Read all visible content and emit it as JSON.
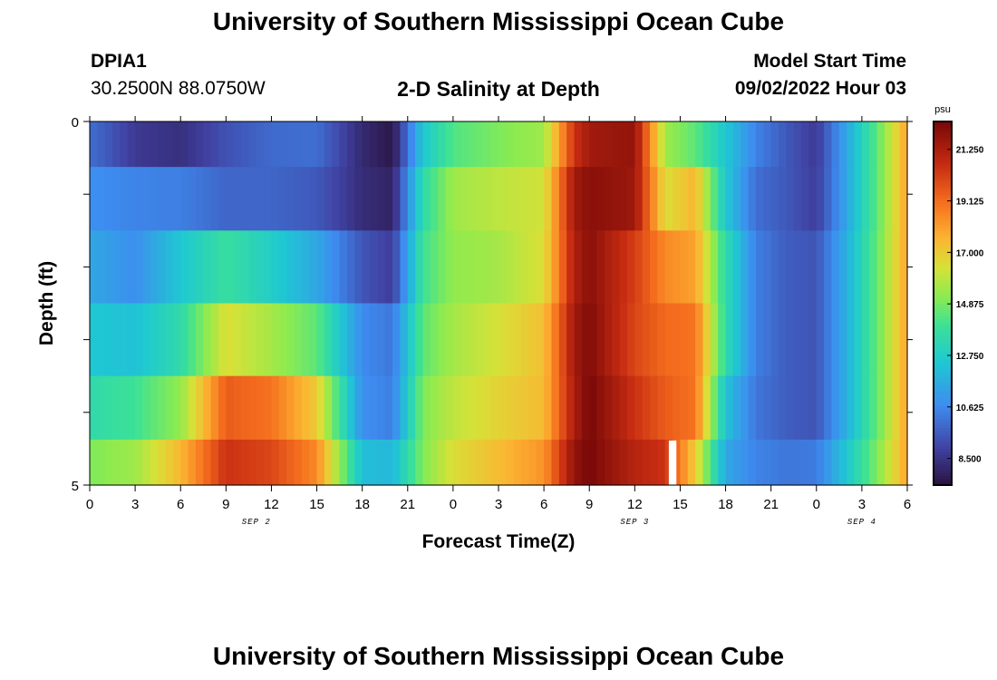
{
  "header": {
    "title": "University of Southern Mississippi Ocean Cube",
    "station": "DPIA1",
    "coords": "30.2500N  88.0750W",
    "plot_title": "2-D Salinity at Depth",
    "start_label": "Model Start Time",
    "start_value": "09/02/2022 Hour 03"
  },
  "footer": {
    "title": "University of Southern Mississippi Ocean Cube"
  },
  "chart_data": {
    "type": "heatmap",
    "xlabel": "Forecast Time(Z)",
    "ylabel": "Depth (ft)",
    "x_tick_labels": [
      "0",
      "3",
      "6",
      "9",
      "12",
      "15",
      "18",
      "21",
      "0",
      "3",
      "6",
      "9",
      "12",
      "15",
      "18",
      "21",
      "0",
      "3",
      "6"
    ],
    "date_labels": [
      {
        "label": "SEP 2",
        "at_hour": 11
      },
      {
        "label": "SEP 3",
        "at_hour": 36
      },
      {
        "label": "SEP 4",
        "at_hour": 51
      }
    ],
    "x_range_hours": [
      0,
      54
    ],
    "y_range_ft": [
      0,
      5
    ],
    "y_tick_labels": [
      {
        "value": 0,
        "label": "0"
      },
      {
        "value": 5,
        "label": "5"
      }
    ],
    "depth_layers_ft": [
      0.25,
      1.0,
      2.0,
      3.0,
      4.0,
      4.75
    ],
    "colorbar": {
      "unit": "psu",
      "min": 7.4,
      "max": 22.4,
      "tick_values": [
        8.5,
        10.625,
        12.75,
        14.875,
        17.0,
        19.125,
        21.25
      ],
      "tick_labels": [
        "8.500",
        "10.625",
        "12.750",
        "14.875",
        "17.000",
        "19.125",
        "21.250"
      ]
    },
    "salinity_keyframes": [
      {
        "depth_ft": 0.25,
        "hours": [
          0,
          3,
          6,
          9,
          12,
          15,
          18,
          20,
          22,
          24,
          27,
          30,
          32,
          33,
          36,
          38,
          40,
          42,
          44,
          46,
          48,
          50,
          52,
          54
        ],
        "psu": [
          10.0,
          8.7,
          8.4,
          9.3,
          9.9,
          10.0,
          8.2,
          7.6,
          12.5,
          14.3,
          15.0,
          15.5,
          20.5,
          21.5,
          21.8,
          15.5,
          14.5,
          12.5,
          10.5,
          9.5,
          8.7,
          11.5,
          14.5,
          18.0
        ]
      },
      {
        "depth_ft": 1.0,
        "hours": [
          0,
          3,
          6,
          9,
          12,
          15,
          18,
          20,
          22,
          24,
          27,
          30,
          32,
          33,
          36,
          38,
          40,
          42,
          44,
          46,
          48,
          50,
          52,
          54
        ],
        "psu": [
          10.8,
          10.5,
          10.4,
          9.8,
          9.8,
          9.5,
          8.3,
          8.0,
          13.5,
          15.5,
          16.0,
          16.3,
          21.5,
          22.0,
          21.6,
          16.5,
          17.5,
          12.5,
          10.0,
          9.5,
          8.8,
          11.5,
          14.5,
          18.0
        ]
      },
      {
        "depth_ft": 2.0,
        "hours": [
          0,
          3,
          6,
          9,
          12,
          15,
          18,
          20,
          22,
          24,
          27,
          30,
          32,
          33,
          36,
          38,
          40,
          42,
          44,
          46,
          48,
          50,
          52,
          54
        ],
        "psu": [
          11.5,
          10.8,
          12.5,
          13.8,
          12.8,
          11.5,
          9.4,
          8.8,
          14.0,
          15.3,
          15.6,
          16.5,
          21.2,
          22.0,
          20.2,
          18.5,
          18.0,
          13.5,
          10.4,
          9.6,
          9.4,
          11.8,
          14.6,
          18.0
        ]
      },
      {
        "depth_ft": 3.0,
        "hours": [
          0,
          3,
          6,
          9,
          12,
          15,
          18,
          20,
          22,
          24,
          27,
          30,
          32,
          33,
          36,
          38,
          40,
          42,
          44,
          46,
          48,
          50,
          52,
          54
        ],
        "psu": [
          12.5,
          12.3,
          13.5,
          16.5,
          15.6,
          14.5,
          10.7,
          10.2,
          14.5,
          15.6,
          16.4,
          17.3,
          21.5,
          22.2,
          20.0,
          19.2,
          19.0,
          13.5,
          10.4,
          9.6,
          9.4,
          11.8,
          14.6,
          18.0
        ]
      },
      {
        "depth_ft": 4.0,
        "hours": [
          0,
          3,
          6,
          9,
          12,
          15,
          18,
          20,
          22,
          24,
          27,
          30,
          32,
          33,
          36,
          38,
          40,
          42,
          44,
          46,
          48,
          50,
          52,
          54
        ],
        "psu": [
          13.5,
          14.0,
          15.3,
          19.5,
          19.0,
          17.0,
          10.8,
          10.4,
          15.0,
          16.0,
          16.8,
          17.4,
          21.3,
          22.4,
          20.5,
          19.5,
          19.0,
          12.3,
          10.2,
          9.6,
          9.4,
          11.8,
          14.6,
          18.0
        ]
      },
      {
        "depth_ft": 4.75,
        "hours": [
          0,
          3,
          6,
          9,
          12,
          15,
          18,
          20,
          22,
          24,
          27,
          30,
          32,
          33,
          36,
          38,
          40,
          42,
          44,
          46,
          48,
          50,
          52,
          54
        ],
        "psu": [
          15.0,
          15.5,
          17.5,
          20.5,
          20.0,
          18.5,
          12.2,
          12.0,
          15.0,
          16.5,
          17.4,
          18.3,
          21.8,
          22.4,
          21.0,
          20.5,
          17.0,
          11.5,
          10.5,
          10.2,
          10.3,
          12.5,
          15.0,
          18.0
        ]
      }
    ],
    "missing_cell": {
      "hour_start": 38.25,
      "hour_end": 38.75,
      "depth_ft": 4.75
    }
  }
}
